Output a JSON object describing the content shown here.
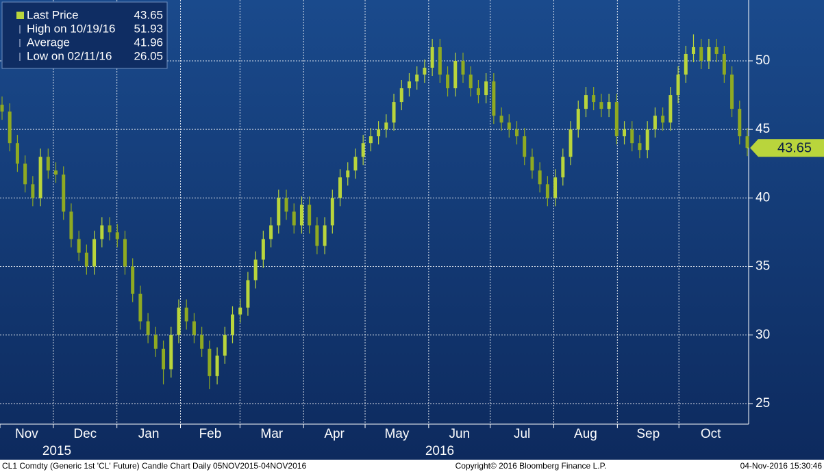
{
  "chart_data": {
    "type": "candlestick",
    "color": "#b9d53c",
    "down_color": "#8faa22",
    "ylim": [
      23.5,
      54.44
    ],
    "yticks": [
      25,
      30,
      35,
      40,
      45,
      50
    ],
    "grid": true,
    "months": [
      "Nov",
      "Dec",
      "Jan",
      "Feb",
      "Mar",
      "Apr",
      "May",
      "Jun",
      "Jul",
      "Aug",
      "Sep",
      "Oct"
    ],
    "years": [
      "2015",
      "2016"
    ],
    "legend": [
      {
        "name": "Last Price",
        "value": 43.65
      },
      {
        "name": "High on 10/19/16",
        "value": 51.93
      },
      {
        "name": "Average",
        "value": 41.96
      },
      {
        "name": "Low on 02/11/16",
        "value": 26.05
      }
    ],
    "footer": [
      "CL1 Comdty (Generic 1st 'CL' Future) Candle Chart  Daily 05NOV2015-04NOV2016",
      "Copyright© 2016 Bloomberg Finance L.P.",
      "04-Nov-2016 15:30:46"
    ],
    "open": [
      46.8,
      46.3,
      44,
      42.5,
      41,
      40,
      43,
      42,
      41.7,
      39,
      37,
      36,
      35,
      37,
      38,
      37.5,
      37,
      35,
      33,
      31,
      30,
      29,
      27.5,
      30,
      32,
      31,
      30,
      29,
      27,
      28.5,
      30,
      31.5,
      32,
      34,
      35.5,
      37,
      38,
      40,
      39,
      38,
      39.5,
      38,
      36.5,
      38,
      40,
      41.5,
      42,
      43,
      44,
      44.5,
      45,
      45.5,
      47,
      48,
      48.5,
      49,
      49.5,
      51,
      49,
      48,
      50,
      49,
      48,
      47.5,
      48.5,
      46,
      45.5,
      45,
      44.5,
      43,
      42,
      41,
      40,
      41.5,
      43,
      45,
      46.5,
      47.5,
      47,
      46.5,
      47,
      44.5,
      45,
      44,
      43.5,
      45,
      46,
      45.5,
      47.5,
      49,
      50.5,
      51,
      50,
      51,
      50.5,
      49,
      46.5,
      44.5
    ],
    "high": [
      47.4,
      46.9,
      44.6,
      43.1,
      41.6,
      43.6,
      43.6,
      42.6,
      42.3,
      39.6,
      37.6,
      36.6,
      37.6,
      38.6,
      38.6,
      38.1,
      37.6,
      35.6,
      33.6,
      31.6,
      30.6,
      29.6,
      30.6,
      32.6,
      32.6,
      31.6,
      30.6,
      29.6,
      29.1,
      30.6,
      32.1,
      32.6,
      34.6,
      36.1,
      37.6,
      38.6,
      40.6,
      40.6,
      39.6,
      40.1,
      40.1,
      38.6,
      38.6,
      40.6,
      42.1,
      42.6,
      43.6,
      44.6,
      45.1,
      45.6,
      46.1,
      47.6,
      48.6,
      49.1,
      49.6,
      50.1,
      51.6,
      51.6,
      49.6,
      50.6,
      50.6,
      49.6,
      48.6,
      49.1,
      49.1,
      46.6,
      46.1,
      45.6,
      45.1,
      43.6,
      42.6,
      41.6,
      42.1,
      43.6,
      45.6,
      47.1,
      48.1,
      48.1,
      47.6,
      47.6,
      47.6,
      45.6,
      45.6,
      44.6,
      45.6,
      46.6,
      46.6,
      48.1,
      49.6,
      51.1,
      51.93,
      51.6,
      51.6,
      51.6,
      51.1,
      49.6,
      47.1,
      45.1
    ],
    "low": [
      45.7,
      43.4,
      41.9,
      40.4,
      39.4,
      39.4,
      41.4,
      41.1,
      38.4,
      36.4,
      35.4,
      34.4,
      34.4,
      36.4,
      36.9,
      36.4,
      34.4,
      32.4,
      30.4,
      29.4,
      28.4,
      26.4,
      26.9,
      29.4,
      30.4,
      29.4,
      28.4,
      26.05,
      26.4,
      27.9,
      29.4,
      30.9,
      31.4,
      33.4,
      34.9,
      36.4,
      37.4,
      38.4,
      37.4,
      37.4,
      37.4,
      35.9,
      35.9,
      37.4,
      39.4,
      40.9,
      41.4,
      42.4,
      43.4,
      43.9,
      44.4,
      44.9,
      46.4,
      47.4,
      47.9,
      48.4,
      48.9,
      48.4,
      47.4,
      47.4,
      48.4,
      47.4,
      46.9,
      46.9,
      45.4,
      44.9,
      44.4,
      43.9,
      42.4,
      41.4,
      40.4,
      39.4,
      39.4,
      40.9,
      42.4,
      44.4,
      45.9,
      46.4,
      45.9,
      45.9,
      43.9,
      43.9,
      43.4,
      42.9,
      42.9,
      44.4,
      44.9,
      44.9,
      46.9,
      48.4,
      49.9,
      49.4,
      49.4,
      49.9,
      48.4,
      45.9,
      43.9,
      43.05
    ],
    "close": [
      46.3,
      44,
      42.5,
      41,
      40,
      43,
      42,
      41.7,
      39,
      37,
      36,
      35,
      37,
      38,
      37.5,
      37,
      35,
      33,
      31,
      30,
      29,
      27.5,
      30,
      32,
      31,
      30,
      29,
      27,
      28.5,
      30,
      31.5,
      32,
      34,
      35.5,
      37,
      38,
      40,
      39,
      38,
      39.5,
      38,
      36.5,
      38,
      40,
      41.5,
      42,
      43,
      44,
      44.5,
      45,
      45.5,
      47,
      48,
      48.5,
      49,
      49.5,
      51,
      49,
      48,
      50,
      49,
      48,
      47.5,
      48.5,
      46,
      45.5,
      45,
      44.5,
      43,
      42,
      41,
      40,
      41.5,
      43,
      45,
      46.5,
      47.5,
      47,
      46.5,
      47,
      44.5,
      45,
      44,
      43.5,
      45,
      46,
      45.5,
      47.5,
      49,
      50.5,
      51,
      50,
      51,
      50.5,
      49,
      46.5,
      44.5,
      43.65
    ]
  }
}
